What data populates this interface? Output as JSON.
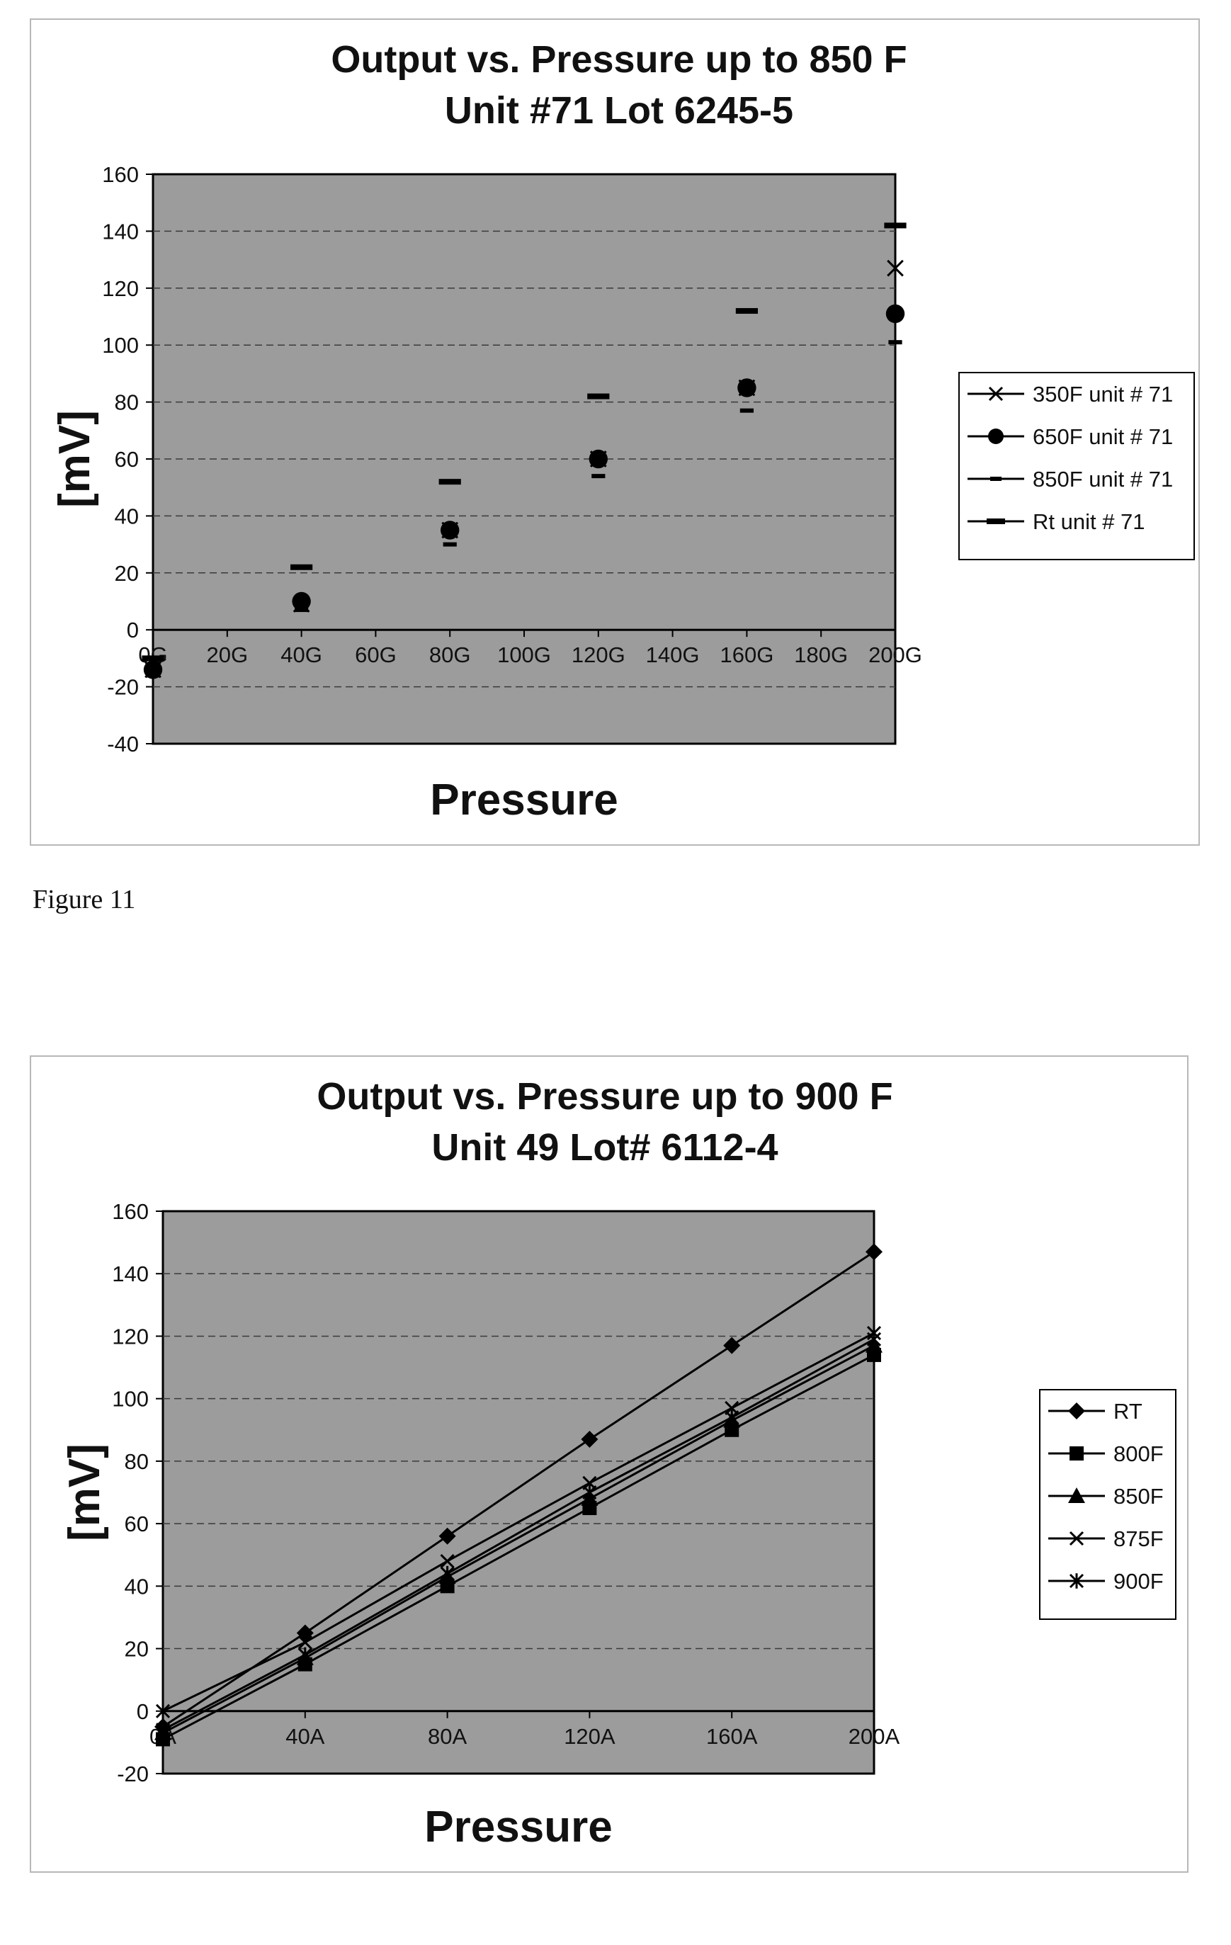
{
  "caption": "Figure 11",
  "chart_data": [
    {
      "type": "scatter",
      "title": "Output vs. Pressure up to 850 F",
      "subtitle": "Unit #71 Lot 6245-5",
      "xlabel": "Pressure",
      "ylabel": "[mV]",
      "categories": [
        "0G",
        "20G",
        "40G",
        "60G",
        "80G",
        "100G",
        "120G",
        "140G",
        "160G",
        "180G",
        "200G"
      ],
      "ylim": [
        -40,
        160
      ],
      "yticks": [
        -40,
        -20,
        0,
        20,
        40,
        60,
        80,
        100,
        120,
        140,
        160
      ],
      "grid": true,
      "legend_position": "right",
      "series": [
        {
          "name": "350F unit # 71",
          "marker": "x",
          "values": [
            -14,
            null,
            9,
            null,
            35,
            null,
            60,
            null,
            85,
            null,
            127
          ]
        },
        {
          "name": "650F unit # 71",
          "marker": "circle",
          "values": [
            -14,
            null,
            10,
            null,
            35,
            null,
            60,
            null,
            85,
            null,
            111
          ]
        },
        {
          "name": "850F unit # 71",
          "marker": "dash",
          "values": [
            -16,
            null,
            7,
            null,
            30,
            null,
            54,
            null,
            77,
            null,
            101
          ]
        },
        {
          "name": "Rt unit # 71",
          "marker": "bar",
          "values": [
            -10,
            null,
            22,
            null,
            52,
            null,
            82,
            null,
            112,
            null,
            142
          ]
        }
      ]
    },
    {
      "type": "line",
      "title": "Output vs. Pressure up to 900 F",
      "subtitle": "Unit 49 Lot# 6112-4",
      "xlabel": "Pressure",
      "ylabel": "[mV]",
      "categories": [
        "0A",
        "40A",
        "80A",
        "120A",
        "160A",
        "200A"
      ],
      "ylim": [
        -20,
        160
      ],
      "yticks": [
        -20,
        0,
        20,
        40,
        60,
        80,
        100,
        120,
        140,
        160
      ],
      "grid": true,
      "legend_position": "right",
      "series": [
        {
          "name": "RT",
          "marker": "diamond",
          "values": [
            -5,
            25,
            56,
            87,
            117,
            147
          ]
        },
        {
          "name": "800F",
          "marker": "square",
          "values": [
            -9,
            15,
            40,
            65,
            90,
            114
          ]
        },
        {
          "name": "850F",
          "marker": "triangle",
          "values": [
            -7,
            17,
            43,
            68,
            93,
            117
          ]
        },
        {
          "name": "875F",
          "marker": "x",
          "values": [
            0,
            22,
            48,
            73,
            97,
            121
          ]
        },
        {
          "name": "900F",
          "marker": "asterisk",
          "values": [
            -6,
            18,
            44,
            70,
            94,
            119
          ]
        }
      ]
    }
  ]
}
